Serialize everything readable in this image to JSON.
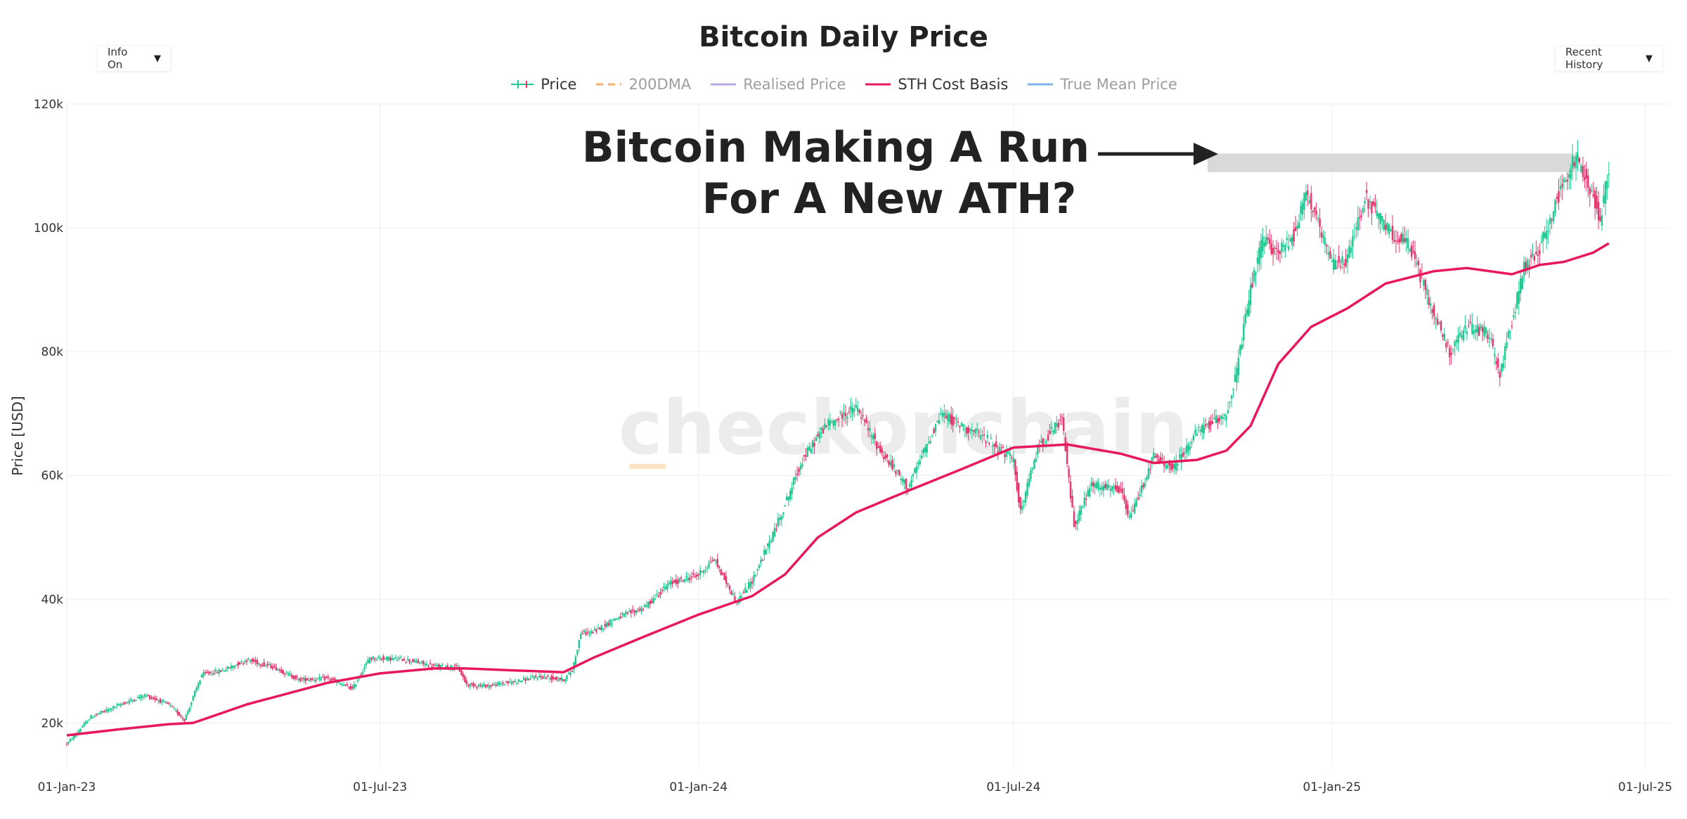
{
  "header": {
    "title": "Bitcoin Daily Price",
    "info_dropdown": "Info On",
    "history_dropdown": "Recent History"
  },
  "watermark": "checkonchain",
  "colors": {
    "up": "#1ec891",
    "down": "#e6336b",
    "dma200": "#f5b06a",
    "realised": "#b9a8e6",
    "sth": "#e8185c",
    "true_mean": "#7eb3e8",
    "ath_band": "#d9d9d9",
    "annotation": "#222222"
  },
  "legend": [
    {
      "label": "Price",
      "active": true,
      "style": "candle",
      "color_key": "up"
    },
    {
      "label": "200DMA",
      "active": false,
      "style": "dash",
      "color_key": "dma200"
    },
    {
      "label": "Realised Price",
      "active": false,
      "style": "line",
      "color_key": "realised"
    },
    {
      "label": "STH Cost Basis",
      "active": true,
      "style": "line",
      "color_key": "sth"
    },
    {
      "label": "True Mean Price",
      "active": false,
      "style": "line",
      "color_key": "true_mean"
    }
  ],
  "annotation": {
    "lines": [
      "Bitcoin Making A Run",
      "For A New ATH?"
    ],
    "ath_band": [
      109000,
      112000
    ]
  },
  "chart_data": {
    "type": "line",
    "title": "Bitcoin Daily Price",
    "ylabel": "Price [USD]",
    "xlabel": "",
    "ylim": [
      13000,
      120000
    ],
    "xlim": [
      "2023-01-01",
      "2025-07-15"
    ],
    "y_ticks": [
      20000,
      40000,
      60000,
      80000,
      100000,
      120000
    ],
    "y_tick_labels": [
      "20k",
      "40k",
      "60k",
      "80k",
      "100k",
      "120k"
    ],
    "x_ticks": [
      "2023-01-01",
      "2023-07-01",
      "2024-01-01",
      "2024-07-01",
      "2025-01-01",
      "2025-07-01"
    ],
    "x_tick_labels": [
      "01-Jan-23",
      "01-Jul-23",
      "01-Jan-24",
      "01-Jul-24",
      "01-Jan-25",
      "01-Jul-25"
    ],
    "grid": true,
    "legend_position": "top",
    "series": [
      {
        "name": "Price",
        "style": "candlestick-approx",
        "x": [
          "2023-01-01",
          "2023-01-15",
          "2023-02-01",
          "2023-02-15",
          "2023-03-01",
          "2023-03-10",
          "2023-03-20",
          "2023-04-01",
          "2023-04-15",
          "2023-05-01",
          "2023-05-15",
          "2023-06-01",
          "2023-06-15",
          "2023-06-25",
          "2023-07-01",
          "2023-07-15",
          "2023-08-01",
          "2023-08-15",
          "2023-08-20",
          "2023-09-01",
          "2023-09-15",
          "2023-10-01",
          "2023-10-15",
          "2023-10-20",
          "2023-10-25",
          "2023-11-01",
          "2023-11-15",
          "2023-12-01",
          "2023-12-15",
          "2024-01-01",
          "2024-01-10",
          "2024-01-23",
          "2024-02-01",
          "2024-02-15",
          "2024-03-01",
          "2024-03-14",
          "2024-04-01",
          "2024-04-15",
          "2024-05-01",
          "2024-05-20",
          "2024-06-01",
          "2024-06-15",
          "2024-07-01",
          "2024-07-05",
          "2024-07-15",
          "2024-07-29",
          "2024-08-05",
          "2024-08-15",
          "2024-09-01",
          "2024-09-06",
          "2024-09-20",
          "2024-10-01",
          "2024-10-15",
          "2024-11-01",
          "2024-11-06",
          "2024-11-15",
          "2024-11-22",
          "2024-12-01",
          "2024-12-10",
          "2024-12-17",
          "2025-01-01",
          "2025-01-10",
          "2025-01-20",
          "2025-02-01",
          "2025-02-15",
          "2025-03-01",
          "2025-03-10",
          "2025-03-20",
          "2025-04-01",
          "2025-04-08",
          "2025-04-15",
          "2025-04-22",
          "2025-05-01",
          "2025-05-10",
          "2025-05-22",
          "2025-06-01",
          "2025-06-05",
          "2025-06-10"
        ],
        "values": [
          16600,
          21000,
          23000,
          24500,
          23000,
          20500,
          27800,
          28500,
          30200,
          29000,
          27000,
          27200,
          25500,
          30500,
          30500,
          30300,
          29200,
          29000,
          26200,
          26000,
          26600,
          27500,
          27000,
          28500,
          34500,
          34700,
          37000,
          38700,
          42500,
          44000,
          46500,
          39500,
          43000,
          51800,
          62500,
          68000,
          71000,
          64000,
          58000,
          70000,
          68000,
          66000,
          62500,
          54000,
          64500,
          69000,
          52000,
          58500,
          57500,
          53000,
          63000,
          61000,
          67000,
          70000,
          75500,
          90000,
          98000,
          96000,
          99000,
          106000,
          94000,
          95000,
          105000,
          100000,
          97000,
          86000,
          80000,
          84000,
          83000,
          76500,
          85000,
          93500,
          96500,
          104000,
          111500,
          105000,
          101500,
          110000
        ]
      },
      {
        "name": "STH Cost Basis",
        "style": "line",
        "x": [
          "2023-01-01",
          "2023-02-01",
          "2023-03-01",
          "2023-03-15",
          "2023-04-15",
          "2023-06-01",
          "2023-07-01",
          "2023-08-01",
          "2023-08-20",
          "2023-09-15",
          "2023-10-15",
          "2023-11-01",
          "2023-12-01",
          "2024-01-01",
          "2024-02-01",
          "2024-02-20",
          "2024-03-10",
          "2024-04-01",
          "2024-05-01",
          "2024-06-01",
          "2024-07-01",
          "2024-08-01",
          "2024-09-01",
          "2024-09-20",
          "2024-10-15",
          "2024-11-01",
          "2024-11-15",
          "2024-12-01",
          "2024-12-20",
          "2025-01-10",
          "2025-02-01",
          "2025-03-01",
          "2025-03-20",
          "2025-04-15",
          "2025-05-01",
          "2025-05-15",
          "2025-06-01",
          "2025-06-10"
        ],
        "values": [
          18000,
          19000,
          19800,
          20000,
          23000,
          26500,
          28000,
          28800,
          28800,
          28500,
          28200,
          30500,
          34000,
          37500,
          40500,
          44000,
          50000,
          54000,
          57500,
          61000,
          64500,
          65000,
          63500,
          62000,
          62500,
          64000,
          68000,
          78000,
          84000,
          87000,
          91000,
          93000,
          93500,
          92500,
          94000,
          94500,
          96000,
          97500
        ]
      }
    ]
  }
}
